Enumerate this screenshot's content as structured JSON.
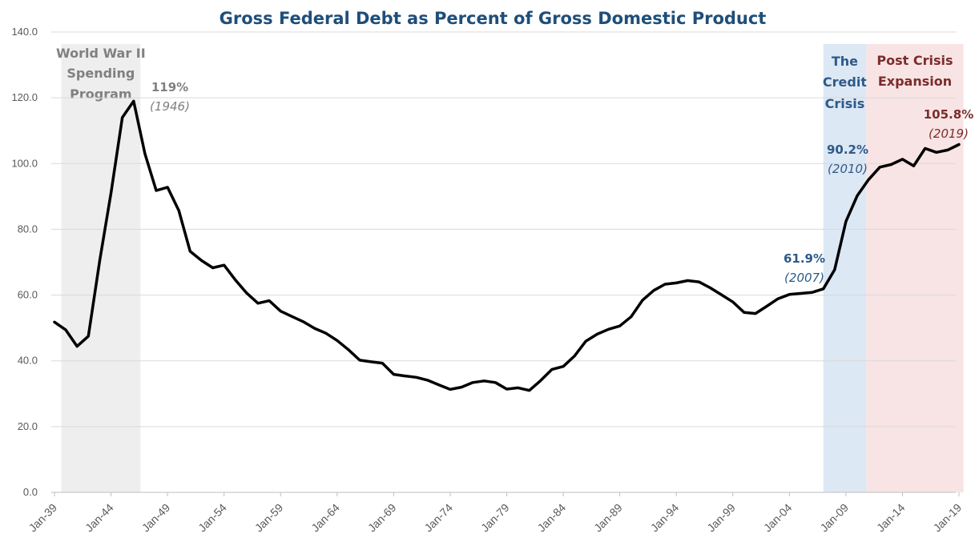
{
  "chart_data": {
    "type": "line",
    "title": "Gross Federal Debt as Percent of Gross Domestic Product",
    "xlabel": "",
    "ylabel": "",
    "ylim": [
      0,
      140
    ],
    "yticks": [
      "0.0",
      "20.0",
      "40.0",
      "60.0",
      "80.0",
      "100.0",
      "120.0",
      "140.0"
    ],
    "x_tick_labels": [
      "Jan-39",
      "Jan-44",
      "Jan-49",
      "Jan-54",
      "Jan-59",
      "Jan-64",
      "Jan-69",
      "Jan-74",
      "Jan-79",
      "Jan-84",
      "Jan-89",
      "Jan-94",
      "Jan-99",
      "Jan-04",
      "Jan-09",
      "Jan-14",
      "Jan-19"
    ],
    "x_tick_years": [
      1939,
      1944,
      1949,
      1954,
      1959,
      1964,
      1969,
      1974,
      1979,
      1984,
      1989,
      1994,
      1999,
      2004,
      2009,
      2014,
      2019
    ],
    "xlim": [
      1939,
      2019
    ],
    "grid": true,
    "legend": "none",
    "line_color": "#000000",
    "series": [
      {
        "x": [
          1939,
          1940,
          1941,
          1942,
          1943,
          1944,
          1945,
          1946,
          1947,
          1948,
          1949,
          1950,
          1951,
          1952,
          1953,
          1954,
          1955,
          1956,
          1957,
          1958,
          1959,
          1960,
          1961,
          1962,
          1963,
          1964,
          1965,
          1966,
          1967,
          1968,
          1969,
          1970,
          1971,
          1972,
          1973,
          1974,
          1975,
          1976,
          1977,
          1978,
          1979,
          1980,
          1981,
          1982,
          1983,
          1984,
          1985,
          1986,
          1987,
          1988,
          1989,
          1990,
          1991,
          1992,
          1993,
          1994,
          1995,
          1996,
          1997,
          1998,
          1999,
          2000,
          2001,
          2002,
          2003,
          2004,
          2005,
          2006,
          2007,
          2008,
          2009,
          2010,
          2011,
          2012,
          2013,
          2014,
          2015,
          2016,
          2017,
          2018,
          2019
        ],
        "values": [
          51.8,
          49.4,
          44.4,
          47.5,
          70.5,
          91.1,
          114.0,
          119.0,
          103.0,
          91.8,
          92.8,
          85.7,
          73.3,
          70.5,
          68.3,
          69.1,
          64.6,
          60.6,
          57.5,
          58.3,
          55.1,
          53.5,
          51.9,
          49.9,
          48.4,
          46.2,
          43.4,
          40.2,
          39.7,
          39.3,
          35.9,
          35.4,
          35.0,
          34.1,
          32.7,
          31.3,
          32.0,
          33.4,
          33.9,
          33.4,
          31.4,
          31.8,
          31.0,
          34.0,
          37.4,
          38.3,
          41.5,
          46.0,
          48.1,
          49.6,
          50.6,
          53.4,
          58.4,
          61.4,
          63.3,
          63.7,
          64.4,
          64.0,
          62.2,
          60.1,
          57.9,
          54.7,
          54.4,
          56.6,
          58.9,
          60.2,
          60.5,
          60.8,
          61.9,
          67.7,
          82.4,
          90.2,
          95.1,
          98.9,
          99.7,
          101.3,
          99.3,
          104.6,
          103.4,
          104.1,
          105.8
        ]
      }
    ],
    "bands": [
      {
        "label_lines": [
          "World War II",
          "Spending",
          "Program"
        ],
        "x_start": 1939.6,
        "x_end": 1946.6,
        "color": "#eeeeee",
        "text_color": "#808080"
      },
      {
        "label_lines": [
          "The",
          "Credit",
          "Crisis"
        ],
        "x_start": 2007.0,
        "x_end": 2010.8,
        "color": "#dde8f5",
        "text_color": "#2e5a88"
      },
      {
        "label_lines": [
          "Post Crisis",
          "Expansion"
        ],
        "x_start": 2010.8,
        "x_end": 2019.4,
        "color": "#f8e4e4",
        "text_color": "#7b2c2c"
      }
    ],
    "annotations": [
      {
        "value": "119%",
        "year": "(1946)",
        "color": "#808080"
      },
      {
        "value": "61.9%",
        "year": "(2007)",
        "color": "#2e5a88"
      },
      {
        "value": "90.2%",
        "year": "(2010)",
        "color": "#2e5a88"
      },
      {
        "value": "105.8%",
        "year": "(2019)",
        "color": "#7b2c2c"
      }
    ]
  }
}
